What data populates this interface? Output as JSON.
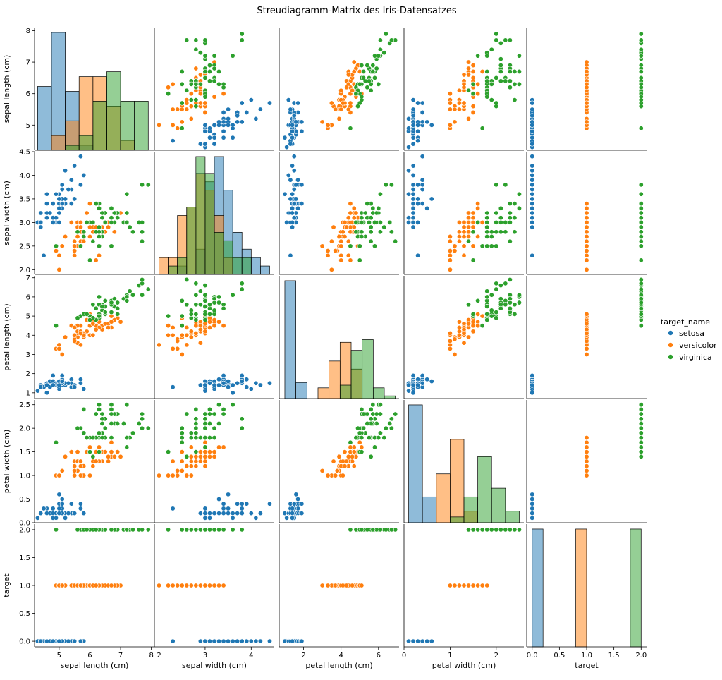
{
  "chart_data": {
    "type": "scatter-matrix",
    "title": "Streudiagramm-Matrix des Iris-Datensatzes",
    "variables": [
      {
        "key": "sepal_length",
        "label": "sepal length (cm)",
        "range": [
          4.2,
          8.1
        ],
        "ticks": [
          5,
          6,
          7,
          8
        ],
        "tick_labels": [
          "5",
          "6",
          "7",
          "8"
        ]
      },
      {
        "key": "sepal_width",
        "label": "sepal width (cm)",
        "range": [
          1.9,
          4.5
        ],
        "ticks": [
          2.0,
          2.5,
          3.0,
          3.5,
          4.0,
          4.5
        ],
        "tick_labels": [
          "2.0",
          "2.5",
          "3.0",
          "3.5",
          "4.0",
          "4.5"
        ],
        "x_ticks": [
          2,
          3,
          4
        ],
        "x_tick_labels": [
          "2",
          "3",
          "4"
        ]
      },
      {
        "key": "petal_length",
        "label": "petal length (cm)",
        "range": [
          0.7,
          7.1
        ],
        "ticks": [
          1,
          2,
          3,
          4,
          5,
          6,
          7
        ],
        "tick_labels": [
          "1",
          "2",
          "3",
          "4",
          "5",
          "6",
          "7"
        ],
        "x_ticks": [
          2,
          4,
          6
        ],
        "x_tick_labels": [
          "2",
          "4",
          "6"
        ]
      },
      {
        "key": "petal_width",
        "label": "petal width (cm)",
        "range": [
          0.0,
          2.6
        ],
        "ticks": [
          0.0,
          0.5,
          1.0,
          1.5,
          2.0,
          2.5
        ],
        "tick_labels": [
          "0.0",
          "0.5",
          "1.0",
          "1.5",
          "2.0",
          "2.5"
        ],
        "x_ticks": [
          0,
          1,
          2
        ],
        "x_tick_labels": [
          "0",
          "1",
          "2"
        ]
      },
      {
        "key": "target",
        "label": "target",
        "range": [
          -0.1,
          2.1
        ],
        "ticks": [
          0.0,
          0.5,
          1.0,
          1.5,
          2.0
        ],
        "tick_labels": [
          "0.0",
          "0.5",
          "1.0",
          "1.5",
          "2.0"
        ]
      }
    ],
    "legend": {
      "title": "target_name",
      "placement": "right",
      "entries": [
        {
          "name": "setosa",
          "color": "#1f77b4"
        },
        {
          "name": "versicolor",
          "color": "#ff7f0e"
        },
        {
          "name": "virginica",
          "color": "#2ca02c"
        }
      ]
    },
    "histograms": {
      "sepal_length": {
        "edges": [
          4.3,
          4.75,
          5.2,
          5.65,
          6.1,
          6.55,
          7.0,
          7.45,
          7.9
        ],
        "counts": {
          "setosa": [
            13,
            24,
            12,
            1,
            0,
            0,
            0,
            0
          ],
          "versicolor": [
            0,
            3,
            6,
            15,
            15,
            9,
            2,
            0
          ],
          "virginica": [
            0,
            0,
            1,
            3,
            10,
            16,
            10,
            10
          ]
        }
      },
      "sepal_width": {
        "edges": [
          2.0,
          2.2,
          2.4,
          2.6,
          2.8,
          3.0,
          3.2,
          3.4,
          3.6,
          3.8,
          4.0,
          4.2,
          4.4
        ],
        "counts": {
          "setosa": [
            0,
            0,
            1,
            0,
            3,
            11,
            14,
            10,
            5,
            3,
            2,
            1
          ],
          "versicolor": [
            2,
            2,
            7,
            8,
            12,
            10,
            7,
            2,
            0,
            0,
            0,
            0
          ],
          "virginica": [
            0,
            1,
            2,
            8,
            14,
            12,
            5,
            4,
            2,
            2,
            0,
            0
          ]
        }
      },
      "petal_length": {
        "edges": [
          1.0,
          1.59,
          2.18,
          2.77,
          3.36,
          3.95,
          4.54,
          5.13,
          5.72,
          6.31,
          6.9
        ],
        "counts": {
          "setosa": [
            44,
            6,
            0,
            0,
            0,
            0,
            0,
            0,
            0,
            0
          ],
          "versicolor": [
            0,
            0,
            0,
            4,
            14,
            21,
            11,
            0,
            0,
            0
          ],
          "virginica": [
            0,
            0,
            0,
            0,
            0,
            5,
            18,
            22,
            4,
            1
          ]
        }
      },
      "petal_width": {
        "edges": [
          0.1,
          0.4,
          0.7,
          1.0,
          1.3,
          1.6,
          1.9,
          2.2,
          2.5
        ],
        "counts": {
          "setosa": [
            41,
            9,
            0,
            0,
            0,
            0,
            0,
            0
          ],
          "versicolor": [
            0,
            0,
            17,
            29,
            4,
            0,
            0,
            0
          ],
          "virginica": [
            0,
            0,
            0,
            2,
            9,
            23,
            12,
            4
          ]
        }
      },
      "target": {
        "edges": [
          0.0,
          0.2,
          0.8,
          1.0,
          1.8,
          2.0
        ],
        "counts": {
          "setosa": [
            50,
            0,
            0,
            0,
            0
          ],
          "versicolor": [
            0,
            0,
            50,
            0,
            0
          ],
          "virginica": [
            0,
            0,
            0,
            0,
            50
          ]
        }
      }
    },
    "points": {
      "setosa": [
        [
          5.1,
          3.5,
          1.4,
          0.2
        ],
        [
          4.9,
          3.0,
          1.4,
          0.2
        ],
        [
          4.7,
          3.2,
          1.3,
          0.2
        ],
        [
          4.6,
          3.1,
          1.5,
          0.2
        ],
        [
          5.0,
          3.6,
          1.4,
          0.2
        ],
        [
          5.4,
          3.9,
          1.7,
          0.4
        ],
        [
          4.6,
          3.4,
          1.4,
          0.3
        ],
        [
          5.0,
          3.4,
          1.5,
          0.2
        ],
        [
          4.4,
          2.9,
          1.4,
          0.2
        ],
        [
          4.9,
          3.1,
          1.5,
          0.1
        ],
        [
          5.4,
          3.7,
          1.5,
          0.2
        ],
        [
          4.8,
          3.4,
          1.6,
          0.2
        ],
        [
          4.8,
          3.0,
          1.4,
          0.1
        ],
        [
          4.3,
          3.0,
          1.1,
          0.1
        ],
        [
          5.8,
          4.0,
          1.2,
          0.2
        ],
        [
          5.7,
          4.4,
          1.5,
          0.4
        ],
        [
          5.4,
          3.9,
          1.3,
          0.4
        ],
        [
          5.1,
          3.5,
          1.4,
          0.3
        ],
        [
          5.7,
          3.8,
          1.7,
          0.3
        ],
        [
          5.1,
          3.8,
          1.5,
          0.3
        ],
        [
          5.4,
          3.4,
          1.7,
          0.2
        ],
        [
          5.1,
          3.7,
          1.5,
          0.4
        ],
        [
          4.6,
          3.6,
          1.0,
          0.2
        ],
        [
          5.1,
          3.3,
          1.7,
          0.5
        ],
        [
          4.8,
          3.4,
          1.9,
          0.2
        ],
        [
          5.0,
          3.0,
          1.6,
          0.2
        ],
        [
          5.0,
          3.4,
          1.6,
          0.4
        ],
        [
          5.2,
          3.5,
          1.5,
          0.2
        ],
        [
          5.2,
          3.4,
          1.4,
          0.2
        ],
        [
          4.7,
          3.2,
          1.6,
          0.2
        ],
        [
          4.8,
          3.1,
          1.6,
          0.2
        ],
        [
          5.4,
          3.4,
          1.5,
          0.4
        ],
        [
          5.2,
          4.1,
          1.5,
          0.1
        ],
        [
          5.5,
          4.2,
          1.4,
          0.2
        ],
        [
          4.9,
          3.1,
          1.5,
          0.2
        ],
        [
          5.0,
          3.2,
          1.2,
          0.2
        ],
        [
          5.5,
          3.5,
          1.3,
          0.2
        ],
        [
          4.9,
          3.6,
          1.4,
          0.1
        ],
        [
          4.4,
          3.0,
          1.3,
          0.2
        ],
        [
          5.1,
          3.4,
          1.5,
          0.2
        ],
        [
          5.0,
          3.5,
          1.3,
          0.3
        ],
        [
          4.5,
          2.3,
          1.3,
          0.3
        ],
        [
          4.4,
          3.2,
          1.3,
          0.2
        ],
        [
          5.0,
          3.5,
          1.6,
          0.6
        ],
        [
          5.1,
          3.8,
          1.9,
          0.4
        ],
        [
          4.8,
          3.0,
          1.4,
          0.3
        ],
        [
          5.1,
          3.8,
          1.6,
          0.2
        ],
        [
          4.6,
          3.2,
          1.4,
          0.2
        ],
        [
          5.3,
          3.7,
          1.5,
          0.2
        ],
        [
          5.0,
          3.3,
          1.4,
          0.2
        ]
      ],
      "versicolor": [
        [
          7.0,
          3.2,
          4.7,
          1.4
        ],
        [
          6.4,
          3.2,
          4.5,
          1.5
        ],
        [
          6.9,
          3.1,
          4.9,
          1.5
        ],
        [
          5.5,
          2.3,
          4.0,
          1.3
        ],
        [
          6.5,
          2.8,
          4.6,
          1.5
        ],
        [
          5.7,
          2.8,
          4.5,
          1.3
        ],
        [
          6.3,
          3.3,
          4.7,
          1.6
        ],
        [
          4.9,
          2.4,
          3.3,
          1.0
        ],
        [
          6.6,
          2.9,
          4.6,
          1.3
        ],
        [
          5.2,
          2.7,
          3.9,
          1.4
        ],
        [
          5.0,
          2.0,
          3.5,
          1.0
        ],
        [
          5.9,
          3.0,
          4.2,
          1.5
        ],
        [
          6.0,
          2.2,
          4.0,
          1.0
        ],
        [
          6.1,
          2.9,
          4.7,
          1.4
        ],
        [
          5.6,
          2.9,
          3.6,
          1.3
        ],
        [
          6.7,
          3.1,
          4.4,
          1.4
        ],
        [
          5.6,
          3.0,
          4.5,
          1.5
        ],
        [
          5.8,
          2.7,
          4.1,
          1.0
        ],
        [
          6.2,
          2.2,
          4.5,
          1.5
        ],
        [
          5.6,
          2.5,
          3.9,
          1.1
        ],
        [
          5.9,
          3.2,
          4.8,
          1.8
        ],
        [
          6.1,
          2.8,
          4.0,
          1.3
        ],
        [
          6.3,
          2.5,
          4.9,
          1.5
        ],
        [
          6.1,
          2.8,
          4.7,
          1.2
        ],
        [
          6.4,
          2.9,
          4.3,
          1.3
        ],
        [
          6.6,
          3.0,
          4.4,
          1.4
        ],
        [
          6.8,
          2.8,
          4.8,
          1.4
        ],
        [
          6.7,
          3.0,
          5.0,
          1.7
        ],
        [
          6.0,
          2.9,
          4.5,
          1.5
        ],
        [
          5.7,
          2.6,
          3.5,
          1.0
        ],
        [
          5.5,
          2.4,
          3.8,
          1.1
        ],
        [
          5.5,
          2.4,
          3.7,
          1.0
        ],
        [
          5.8,
          2.7,
          3.9,
          1.2
        ],
        [
          6.0,
          2.7,
          5.1,
          1.6
        ],
        [
          5.4,
          3.0,
          4.5,
          1.5
        ],
        [
          6.0,
          3.4,
          4.5,
          1.6
        ],
        [
          6.7,
          3.1,
          4.7,
          1.5
        ],
        [
          6.3,
          2.3,
          4.4,
          1.3
        ],
        [
          5.6,
          3.0,
          4.1,
          1.3
        ],
        [
          5.5,
          2.5,
          4.0,
          1.3
        ],
        [
          5.5,
          2.6,
          4.4,
          1.2
        ],
        [
          6.1,
          3.0,
          4.6,
          1.4
        ],
        [
          5.8,
          2.6,
          4.0,
          1.2
        ],
        [
          5.0,
          2.3,
          3.3,
          1.0
        ],
        [
          5.6,
          2.7,
          4.2,
          1.3
        ],
        [
          5.7,
          3.0,
          4.2,
          1.2
        ],
        [
          5.7,
          2.9,
          4.2,
          1.3
        ],
        [
          6.2,
          2.9,
          4.3,
          1.3
        ],
        [
          5.1,
          2.5,
          3.0,
          1.1
        ],
        [
          5.7,
          2.8,
          4.1,
          1.3
        ]
      ],
      "virginica": [
        [
          6.3,
          3.3,
          6.0,
          2.5
        ],
        [
          5.8,
          2.7,
          5.1,
          1.9
        ],
        [
          7.1,
          3.0,
          5.9,
          2.1
        ],
        [
          6.3,
          2.9,
          5.6,
          1.8
        ],
        [
          6.5,
          3.0,
          5.8,
          2.2
        ],
        [
          7.6,
          3.0,
          6.6,
          2.1
        ],
        [
          4.9,
          2.5,
          4.5,
          1.7
        ],
        [
          7.3,
          2.9,
          6.3,
          1.8
        ],
        [
          6.7,
          2.5,
          5.8,
          1.8
        ],
        [
          7.2,
          3.6,
          6.1,
          2.5
        ],
        [
          6.5,
          3.2,
          5.1,
          2.0
        ],
        [
          6.4,
          2.7,
          5.3,
          1.9
        ],
        [
          6.8,
          3.0,
          5.5,
          2.1
        ],
        [
          5.7,
          2.5,
          5.0,
          2.0
        ],
        [
          5.8,
          2.8,
          5.1,
          2.4
        ],
        [
          6.4,
          3.2,
          5.3,
          2.3
        ],
        [
          6.5,
          3.0,
          5.5,
          1.8
        ],
        [
          7.7,
          3.8,
          6.7,
          2.2
        ],
        [
          7.7,
          2.6,
          6.9,
          2.3
        ],
        [
          6.0,
          2.2,
          5.0,
          1.5
        ],
        [
          6.9,
          3.2,
          5.7,
          2.3
        ],
        [
          5.6,
          2.8,
          4.9,
          2.0
        ],
        [
          7.7,
          2.8,
          6.7,
          2.0
        ],
        [
          6.3,
          2.7,
          4.9,
          1.8
        ],
        [
          6.7,
          3.3,
          5.7,
          2.1
        ],
        [
          7.2,
          3.2,
          6.0,
          1.8
        ],
        [
          6.2,
          2.8,
          4.8,
          1.8
        ],
        [
          6.1,
          3.0,
          4.9,
          1.8
        ],
        [
          6.4,
          2.8,
          5.6,
          2.1
        ],
        [
          7.2,
          3.0,
          5.8,
          1.6
        ],
        [
          7.4,
          2.8,
          6.1,
          1.9
        ],
        [
          7.9,
          3.8,
          6.4,
          2.0
        ],
        [
          6.4,
          2.8,
          5.6,
          2.2
        ],
        [
          6.3,
          2.8,
          5.1,
          1.5
        ],
        [
          6.1,
          2.6,
          5.6,
          1.4
        ],
        [
          7.7,
          3.0,
          6.1,
          2.3
        ],
        [
          6.3,
          3.4,
          5.6,
          2.4
        ],
        [
          6.4,
          3.1,
          5.5,
          1.8
        ],
        [
          6.0,
          3.0,
          4.8,
          1.8
        ],
        [
          6.9,
          3.1,
          5.4,
          2.1
        ],
        [
          6.7,
          3.1,
          5.6,
          2.4
        ],
        [
          6.9,
          3.1,
          5.1,
          2.3
        ],
        [
          5.8,
          2.7,
          5.1,
          1.9
        ],
        [
          6.8,
          3.2,
          5.9,
          2.3
        ],
        [
          6.7,
          3.3,
          5.7,
          2.5
        ],
        [
          6.7,
          3.0,
          5.2,
          2.3
        ],
        [
          6.3,
          2.5,
          5.0,
          1.9
        ],
        [
          6.5,
          3.0,
          5.2,
          2.0
        ],
        [
          6.2,
          3.4,
          5.4,
          2.3
        ],
        [
          5.9,
          3.0,
          5.1,
          1.8
        ]
      ]
    }
  }
}
